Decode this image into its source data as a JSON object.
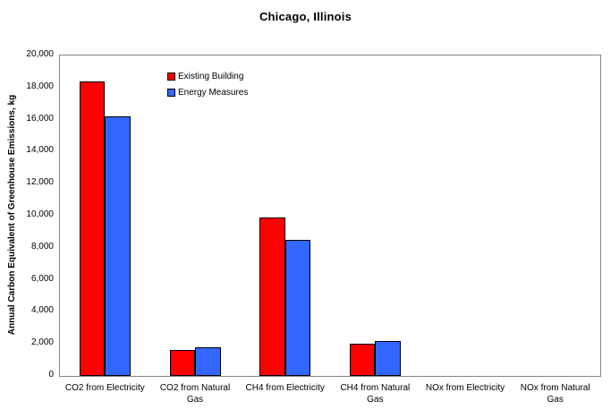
{
  "chart_data": {
    "type": "bar",
    "title": "Chicago, Illinois",
    "xlabel": "",
    "ylabel": "Annual Carbon Equivalent of Greenhouse Emissions, kg",
    "ylim": [
      0,
      20000
    ],
    "grid": false,
    "legend_position": "top-left-inside",
    "axis_color": "#848484",
    "bar_border_color": "#000000",
    "y_tick_values": [
      0,
      2000,
      4000,
      6000,
      8000,
      10000,
      12000,
      14000,
      16000,
      18000,
      20000
    ],
    "y_tick_labels": [
      "0",
      "2,000",
      "4,000",
      "6,000",
      "8,000",
      "10,000",
      "12,000",
      "14,000",
      "16,000",
      "18,000",
      "20,000"
    ],
    "categories": [
      "CO2 from Electricity",
      "CO2 from Natural Gas",
      "CH4 from Electricity",
      "CH4 from Natural Gas",
      "NOx from Electricity",
      "NOx from Natural Gas"
    ],
    "category_label_lines": [
      [
        "CO2 from Electricity"
      ],
      [
        "CO2 from Natural",
        "Gas"
      ],
      [
        "CH4 from Electricity"
      ],
      [
        "CH4 from Natural",
        "Gas"
      ],
      [
        "NOx from Electricity"
      ],
      [
        "NOx from Natural",
        "Gas"
      ]
    ],
    "series": [
      {
        "name": "Existing Building",
        "color": "#FF0000",
        "values": [
          18400,
          1600,
          9900,
          2000,
          0,
          0
        ]
      },
      {
        "name": "Energy Measures",
        "color": "#3366FF",
        "values": [
          16200,
          1800,
          8500,
          2200,
          0,
          0
        ]
      }
    ]
  }
}
